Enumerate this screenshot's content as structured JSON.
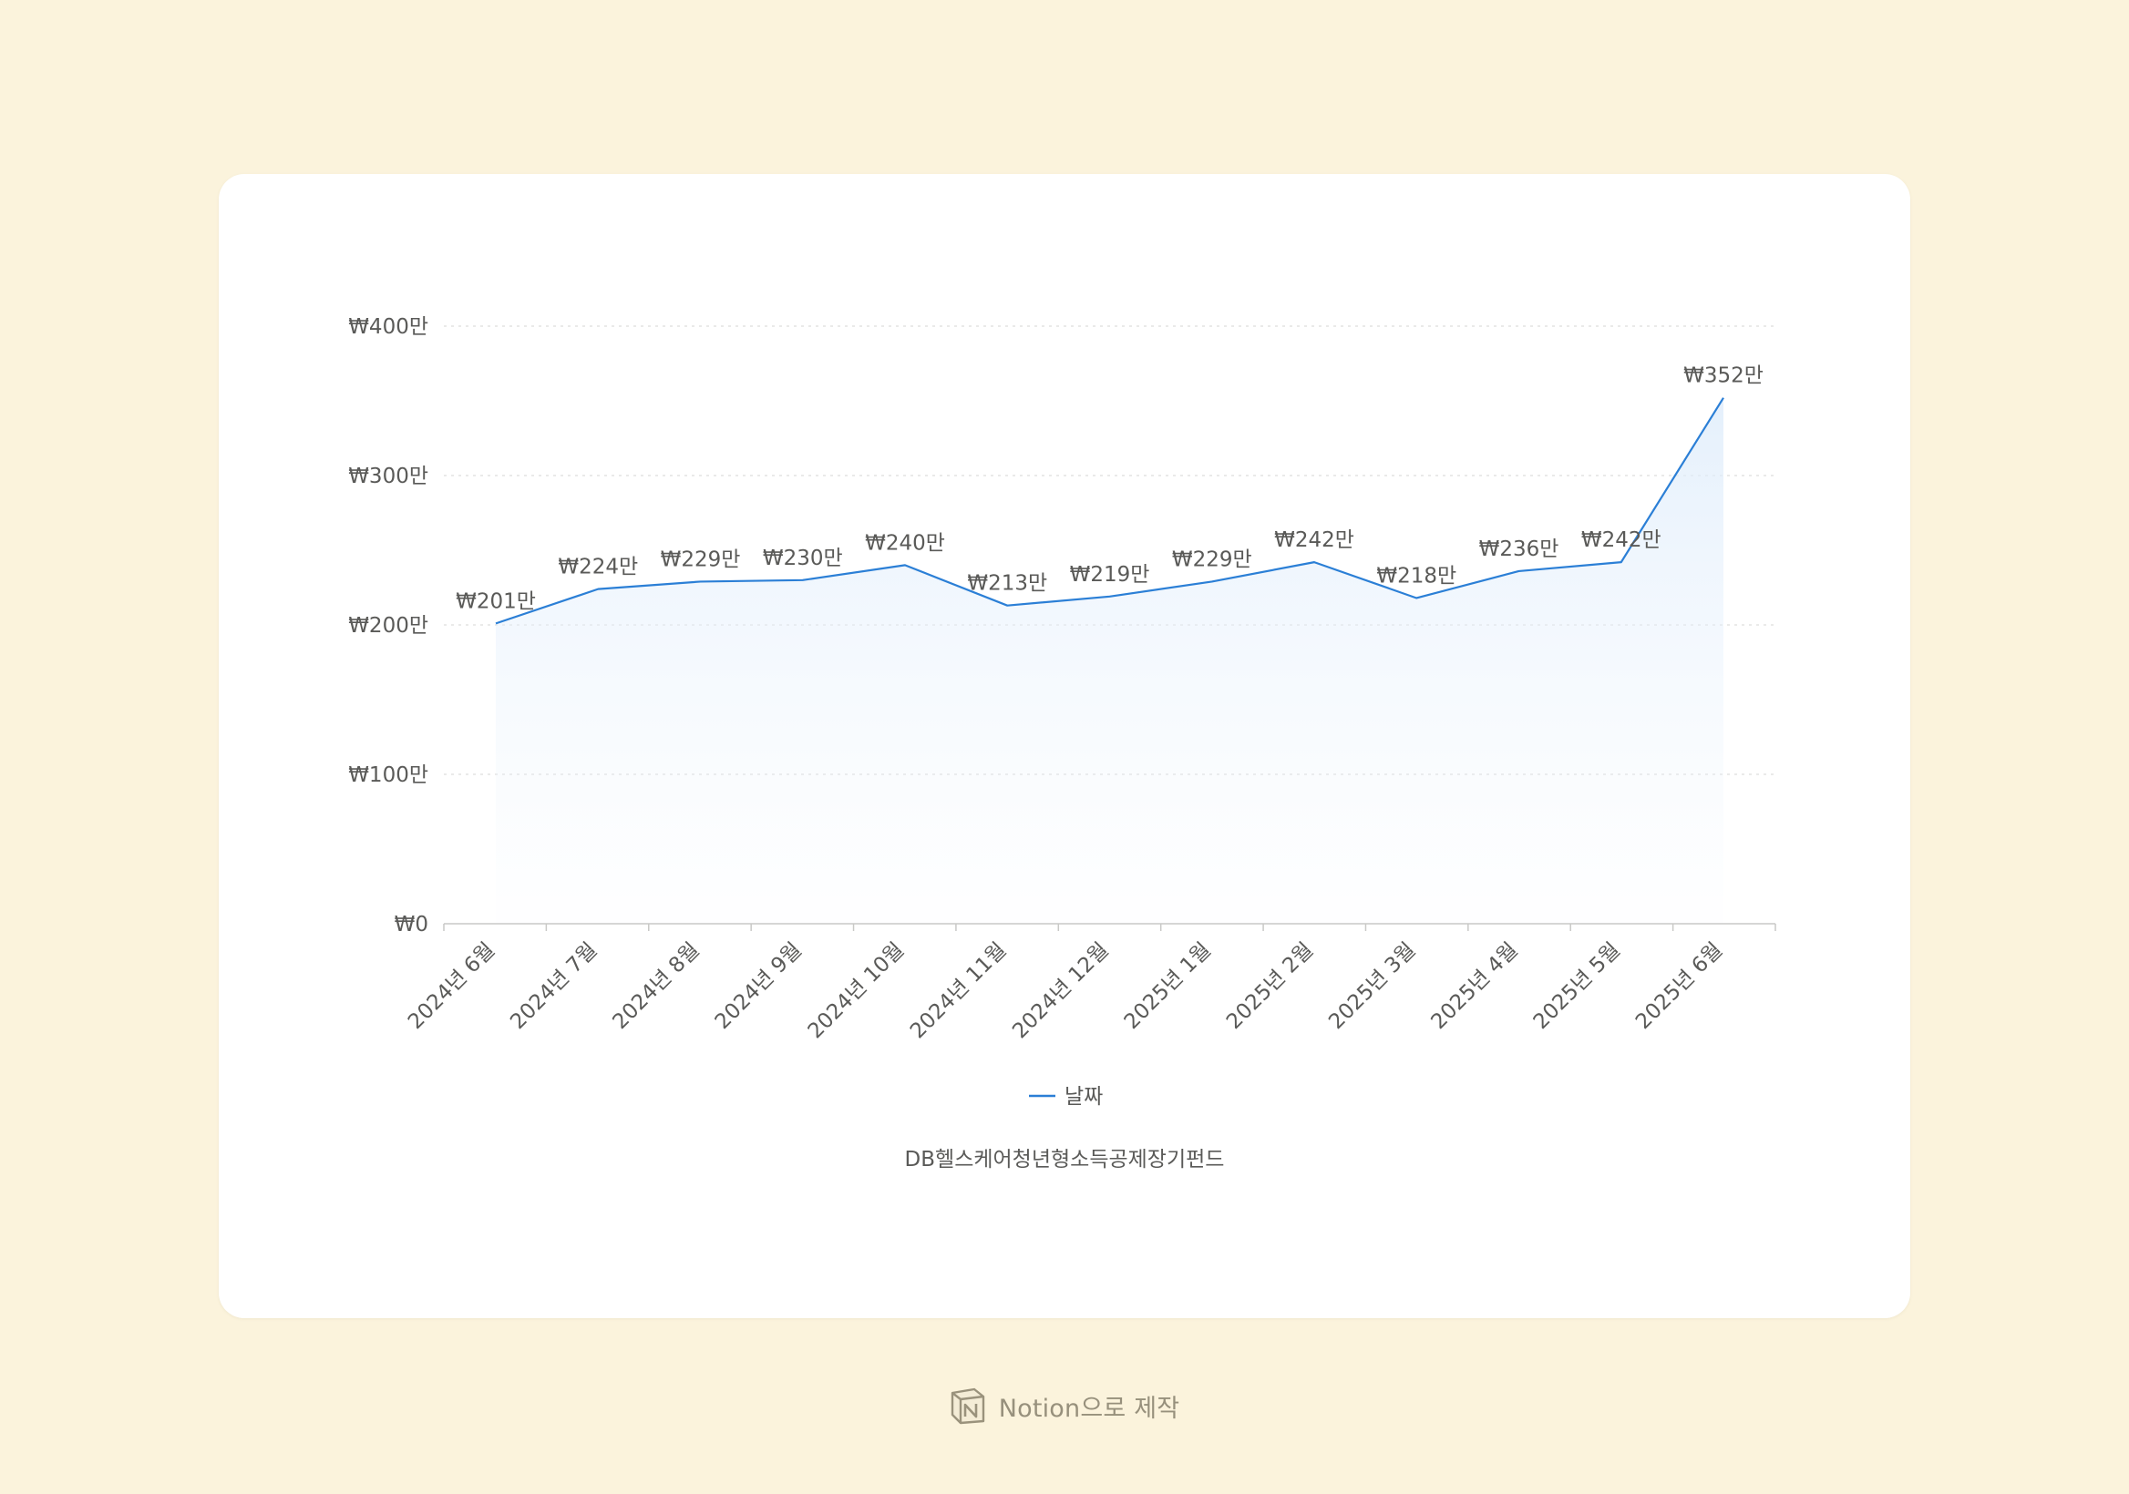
{
  "chart_data": {
    "type": "area",
    "title": "DB헬스케어청년형소득공제장기펀드",
    "categories": [
      "2024년 6월",
      "2024년 7월",
      "2024년 8월",
      "2024년 9월",
      "2024년 10월",
      "2024년 11월",
      "2024년 12월",
      "2025년 1월",
      "2025년 2월",
      "2025년 3월",
      "2025년 4월",
      "2025년 5월",
      "2025년 6월"
    ],
    "series": [
      {
        "name": "날짜",
        "values": [
          2010000,
          2240000,
          2290000,
          2300000,
          2400000,
          2130000,
          2190000,
          2290000,
          2420000,
          2180000,
          2360000,
          2420000,
          3520000
        ],
        "labels": [
          "₩201만",
          "₩224만",
          "₩229만",
          "₩230만",
          "₩240만",
          "₩213만",
          "₩219만",
          "₩229만",
          "₩242만",
          "₩218만",
          "₩236만",
          "₩242만",
          "₩352만"
        ]
      }
    ],
    "yticks": [
      0,
      1000000,
      2000000,
      3000000,
      4000000
    ],
    "ytick_labels": [
      "₩0",
      "₩100만",
      "₩200만",
      "₩300만",
      "₩400만"
    ],
    "ylim": [
      0,
      4000000
    ],
    "grid": true,
    "legend_position": "bottom-center",
    "line_color": "#2b7fd6"
  },
  "footer": {
    "text": "Notion으로 제작",
    "icon": "notion-icon"
  }
}
